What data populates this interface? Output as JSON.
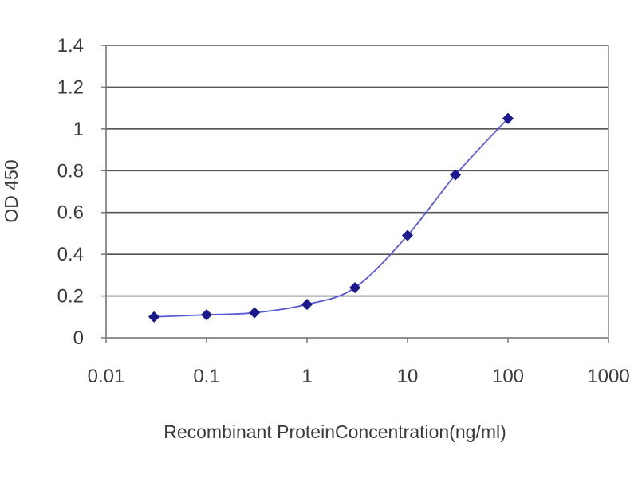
{
  "chart_data": {
    "type": "scatter",
    "xlabel": "Recombinant ProteinConcentration(ng/ml)",
    "ylabel": "OD 450",
    "x_scale": "log",
    "xlim": [
      0.01,
      1000
    ],
    "ylim": [
      0,
      1.4
    ],
    "x_ticks": [
      "0.01",
      "0.1",
      "1",
      "10",
      "100",
      "1000"
    ],
    "y_ticks": [
      "0",
      "0.2",
      "0.4",
      "0.6",
      "0.8",
      "1",
      "1.2",
      "1.4"
    ],
    "grid": "horizontal",
    "legend": "none",
    "series": [
      {
        "x": [
          0.03,
          0.1,
          0.3,
          1,
          3,
          10,
          30,
          100
        ],
        "y": [
          0.1,
          0.11,
          0.12,
          0.16,
          0.24,
          0.49,
          0.78,
          1.05
        ],
        "color": "#1a1a8c",
        "line_color": "#5a5ad8"
      }
    ]
  }
}
